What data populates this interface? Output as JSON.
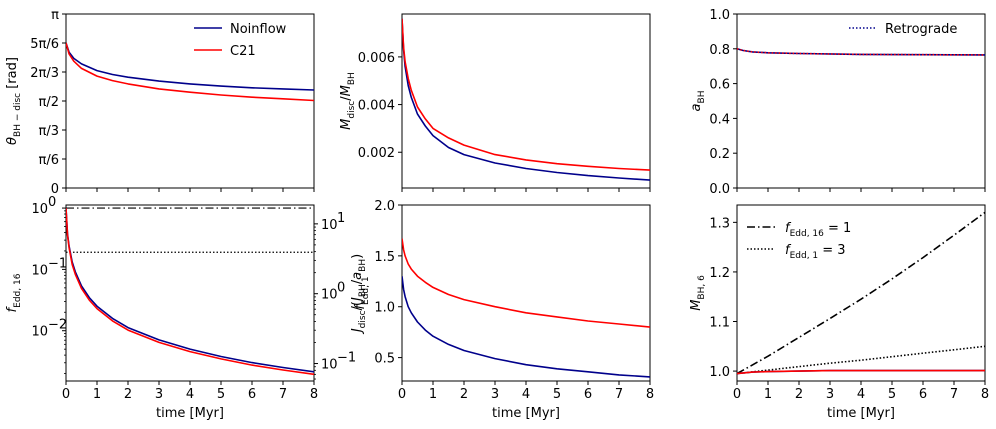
{
  "colors": {
    "navy": "#00008b",
    "red": "#ff0000",
    "black": "#000000"
  },
  "chart_data": [
    {
      "id": "theta",
      "type": "line",
      "ylabel_main": "θ",
      "ylabel_sub": "BH − disc",
      "ylabel_tail": " [rad]",
      "xlim": [
        0,
        8
      ],
      "ylim": [
        0,
        3.14159
      ],
      "xticks": [
        0,
        1,
        2,
        3,
        4,
        5,
        6,
        7,
        8
      ],
      "yticks": [
        0,
        0.5236,
        1.0472,
        1.5708,
        2.0944,
        2.618,
        3.14159
      ],
      "ytick_labels": [
        "0",
        "π/6",
        "π/3",
        "π/2",
        "2π/3",
        "5π/6",
        "π"
      ],
      "show_xticklabels": false,
      "legend": [
        "Noinflow",
        "C21"
      ],
      "series": [
        {
          "name": "Noinflow",
          "color": "navy",
          "style": "solid",
          "x": [
            0,
            0.1,
            0.25,
            0.5,
            1,
            1.5,
            2,
            3,
            4,
            5,
            6,
            7,
            8
          ],
          "y": [
            2.62,
            2.45,
            2.34,
            2.24,
            2.12,
            2.05,
            2.0,
            1.93,
            1.88,
            1.84,
            1.81,
            1.79,
            1.77
          ]
        },
        {
          "name": "C21",
          "color": "red",
          "style": "solid",
          "x": [
            0,
            0.1,
            0.25,
            0.5,
            1,
            1.5,
            2,
            3,
            4,
            5,
            6,
            7,
            8
          ],
          "y": [
            2.62,
            2.42,
            2.29,
            2.16,
            2.02,
            1.94,
            1.88,
            1.79,
            1.73,
            1.68,
            1.64,
            1.61,
            1.58
          ]
        }
      ]
    },
    {
      "id": "mdisc",
      "type": "line",
      "ylabel_main": "M",
      "ylabel_sub": "disc",
      "ylabel_tail": "/M",
      "ylabel_sub2": "BH",
      "xlim": [
        0,
        8
      ],
      "ylim": [
        0.0005,
        0.0078
      ],
      "xticks": [
        0,
        1,
        2,
        3,
        4,
        5,
        6,
        7,
        8
      ],
      "yticks": [
        0.002,
        0.004,
        0.006
      ],
      "ytick_labels": [
        "0.002",
        "0.004",
        "0.006"
      ],
      "show_xticklabels": false,
      "series": [
        {
          "name": "Noinflow",
          "color": "navy",
          "style": "solid",
          "x": [
            0,
            0.05,
            0.1,
            0.2,
            0.3,
            0.5,
            0.75,
            1,
            1.5,
            2,
            3,
            4,
            5,
            6,
            7,
            8
          ],
          "y": [
            0.0076,
            0.0063,
            0.0056,
            0.0048,
            0.0043,
            0.0036,
            0.0031,
            0.0027,
            0.0022,
            0.0019,
            0.00155,
            0.00132,
            0.00115,
            0.00102,
            0.00092,
            0.00083
          ]
        },
        {
          "name": "C21",
          "color": "red",
          "style": "solid",
          "x": [
            0,
            0.05,
            0.1,
            0.2,
            0.3,
            0.5,
            0.75,
            1,
            1.5,
            2,
            3,
            4,
            5,
            6,
            7,
            8
          ],
          "y": [
            0.0076,
            0.0064,
            0.0058,
            0.0051,
            0.0046,
            0.0039,
            0.0034,
            0.003,
            0.0026,
            0.0023,
            0.0019,
            0.00168,
            0.00152,
            0.00141,
            0.00132,
            0.00125
          ]
        }
      ]
    },
    {
      "id": "abh",
      "type": "line",
      "ylabel_main": "a",
      "ylabel_sub": "BH",
      "xlim": [
        0,
        8
      ],
      "ylim": [
        0,
        1.0
      ],
      "xticks": [
        0,
        1,
        2,
        3,
        4,
        5,
        6,
        7,
        8
      ],
      "yticks": [
        0,
        0.2,
        0.4,
        0.6,
        0.8,
        1.0
      ],
      "ytick_labels": [
        "0.0",
        "0.2",
        "0.4",
        "0.6",
        "0.8",
        "1.0"
      ],
      "show_xticklabels": false,
      "legend": [
        "Retrograde"
      ],
      "series": [
        {
          "name": "Noinflow",
          "color": "navy",
          "style": "solid",
          "x": [
            0,
            0.2,
            0.5,
            1,
            2,
            4,
            6,
            8
          ],
          "y": [
            0.8,
            0.79,
            0.782,
            0.777,
            0.773,
            0.768,
            0.766,
            0.765
          ]
        },
        {
          "name": "Retrograde",
          "color": "red",
          "style": "dotted",
          "x": [
            0,
            0.2,
            0.5,
            1,
            2,
            4,
            6,
            8
          ],
          "y": [
            0.8,
            0.79,
            0.782,
            0.777,
            0.773,
            0.768,
            0.766,
            0.765
          ]
        }
      ]
    },
    {
      "id": "fedd",
      "type": "line",
      "ylabel_main": "f",
      "ylabel_sub": "Edd, 16",
      "right_ylabel_main": "f",
      "right_ylabel_sub": "Edd, 1",
      "xlabel": "time [Myr]",
      "xlim": [
        0,
        8
      ],
      "ylim_log10": [
        -2.82,
        0.05
      ],
      "xticks": [
        0,
        1,
        2,
        3,
        4,
        5,
        6,
        7,
        8
      ],
      "yticks_log10": [
        0,
        -1,
        -2
      ],
      "ytick_labels": [
        "10",
        "10",
        "10"
      ],
      "ytick_exps": [
        "0",
        "−1",
        "−2"
      ],
      "right_ylim_log10": [
        -1.25,
        1.27
      ],
      "right_yticks_log10": [
        1,
        0,
        -1
      ],
      "right_ytick_labels": [
        "10",
        "10",
        "10"
      ],
      "right_ytick_exps": [
        "1",
        "0",
        "−1"
      ],
      "show_xticklabels": true,
      "hlines": [
        {
          "y_log10": 0,
          "style": "dashdot"
        },
        {
          "y_log10": -0.72,
          "style": "dotted"
        }
      ],
      "series": [
        {
          "name": "Noinflow",
          "color": "navy",
          "style": "solid",
          "x": [
            0,
            0.05,
            0.1,
            0.2,
            0.3,
            0.5,
            0.75,
            1,
            1.5,
            2,
            3,
            4,
            5,
            6,
            7,
            8
          ],
          "y_log10": [
            0,
            -0.42,
            -0.62,
            -0.88,
            -1.04,
            -1.27,
            -1.46,
            -1.6,
            -1.8,
            -1.95,
            -2.15,
            -2.3,
            -2.42,
            -2.52,
            -2.6,
            -2.67
          ]
        },
        {
          "name": "C21",
          "color": "red",
          "style": "solid",
          "x": [
            0,
            0.05,
            0.1,
            0.2,
            0.3,
            0.5,
            0.75,
            1,
            1.5,
            2,
            3,
            4,
            5,
            6,
            7,
            8
          ],
          "y_log10": [
            0,
            -0.44,
            -0.65,
            -0.92,
            -1.08,
            -1.31,
            -1.5,
            -1.64,
            -1.84,
            -1.99,
            -2.19,
            -2.34,
            -2.46,
            -2.56,
            -2.64,
            -2.71
          ]
        }
      ]
    },
    {
      "id": "jdisc",
      "type": "line",
      "ylabel_main": "J",
      "ylabel_sub": "disc",
      "ylabel_tail": "/(J",
      "ylabel_sub2": "BH",
      "ylabel_tail2": "/a",
      "ylabel_sub3": "BH",
      "ylabel_end": ")",
      "xlabel": "time [Myr]",
      "xlim": [
        0,
        8
      ],
      "ylim": [
        0.27,
        2.0
      ],
      "xticks": [
        0,
        1,
        2,
        3,
        4,
        5,
        6,
        7,
        8
      ],
      "yticks": [
        0.5,
        1.0,
        1.5,
        2.0
      ],
      "ytick_labels": [
        "0.5",
        "1.0",
        "1.5",
        "2.0"
      ],
      "show_xticklabels": true,
      "series": [
        {
          "name": "Noinflow",
          "color": "navy",
          "style": "solid",
          "x": [
            0,
            0.05,
            0.1,
            0.2,
            0.3,
            0.5,
            0.75,
            1,
            1.5,
            2,
            3,
            4,
            5,
            6,
            7,
            8
          ],
          "y": [
            1.3,
            1.17,
            1.1,
            1.0,
            0.94,
            0.85,
            0.77,
            0.71,
            0.63,
            0.57,
            0.49,
            0.43,
            0.39,
            0.36,
            0.33,
            0.31
          ]
        },
        {
          "name": "C21",
          "color": "red",
          "style": "solid",
          "x": [
            0,
            0.05,
            0.1,
            0.2,
            0.3,
            0.5,
            0.75,
            1,
            1.5,
            2,
            3,
            4,
            5,
            6,
            7,
            8
          ],
          "y": [
            1.67,
            1.56,
            1.5,
            1.42,
            1.37,
            1.3,
            1.24,
            1.19,
            1.12,
            1.07,
            1.0,
            0.94,
            0.9,
            0.86,
            0.83,
            0.8
          ]
        }
      ]
    },
    {
      "id": "mbh",
      "type": "line",
      "ylabel_main": "M",
      "ylabel_sub": "BH, 6",
      "xlabel": "time [Myr]",
      "xlim": [
        0,
        8
      ],
      "ylim": [
        0.98,
        1.335
      ],
      "xticks": [
        0,
        1,
        2,
        3,
        4,
        5,
        6,
        7,
        8
      ],
      "yticks": [
        1.0,
        1.1,
        1.2,
        1.3
      ],
      "ytick_labels": [
        "1.0",
        "1.1",
        "1.2",
        "1.3"
      ],
      "show_xticklabels": true,
      "legend": [
        "f_Edd,16 = 1",
        "f_Edd,1 = 3"
      ],
      "legend_parts": [
        {
          "main": "f",
          "sub": "Edd, 16",
          "tail": " = 1"
        },
        {
          "main": "f",
          "sub": "Edd, 1",
          "tail": " = 3"
        }
      ],
      "series": [
        {
          "name": "fEdd16=1",
          "color": "black",
          "style": "dashdot",
          "x": [
            0,
            1,
            2,
            3,
            4,
            5,
            6,
            7,
            8
          ],
          "y": [
            0.995,
            1.03,
            1.068,
            1.106,
            1.145,
            1.186,
            1.229,
            1.274,
            1.32
          ]
        },
        {
          "name": "fEdd1=3",
          "color": "black",
          "style": "dotted",
          "x": [
            0,
            1,
            2,
            3,
            4,
            5,
            6,
            7,
            8
          ],
          "y": [
            0.995,
            1.002,
            1.009,
            1.016,
            1.022,
            1.029,
            1.036,
            1.043,
            1.05
          ]
        },
        {
          "name": "Noinflow",
          "color": "navy",
          "style": "solid",
          "x": [
            0,
            0.5,
            1,
            2,
            3,
            4,
            6,
            8
          ],
          "y": [
            0.995,
            0.998,
            0.999,
            1.0,
            1.001,
            1.001,
            1.001,
            1.001
          ]
        },
        {
          "name": "C21",
          "color": "red",
          "style": "solid",
          "x": [
            0,
            0.5,
            1,
            2,
            3,
            4,
            6,
            8
          ],
          "y": [
            0.995,
            0.998,
            0.999,
            1.0,
            1.001,
            1.001,
            1.001,
            1.001
          ]
        }
      ]
    }
  ]
}
